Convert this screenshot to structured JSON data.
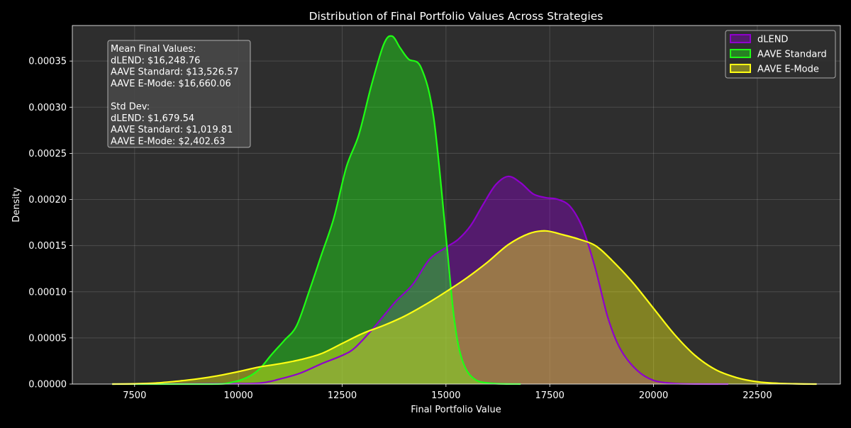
{
  "chart_data": {
    "type": "area",
    "title": "Distribution of Final Portfolio Values Across Strategies",
    "xlabel": "Final Portfolio Value",
    "ylabel": "Density",
    "xlim": [
      6000,
      24500
    ],
    "ylim": [
      0,
      0.0003885
    ],
    "xticks": [
      7500,
      10000,
      12500,
      15000,
      17500,
      20000,
      22500
    ],
    "yticks": [
      0,
      5e-05,
      0.0001,
      0.00015,
      0.0002,
      0.00025,
      0.0003,
      0.00035
    ],
    "ytick_labels": [
      "0.00000",
      "0.00005",
      "0.00010",
      "0.00015",
      "0.00020",
      "0.00025",
      "0.00030",
      "0.00035"
    ],
    "grid": true,
    "background": "#2e2e2e",
    "legend_position": "top-right",
    "series": [
      {
        "name": "dLEND",
        "color": "#8e00cc",
        "points": [
          [
            6960,
            0
          ],
          [
            9500,
            5e-07
          ],
          [
            10500,
            1e-06
          ],
          [
            11000,
            5.5e-06
          ],
          [
            11500,
            1.2e-05
          ],
          [
            12000,
            2.2e-05
          ],
          [
            12500,
            3.1e-05
          ],
          [
            12800,
            3.9e-05
          ],
          [
            13200,
            5.8e-05
          ],
          [
            13500,
            7.4e-05
          ],
          [
            13800,
            9e-05
          ],
          [
            14200,
            0.000108
          ],
          [
            14600,
            0.000135
          ],
          [
            15000,
            0.000148
          ],
          [
            15300,
            0.000157
          ],
          [
            15600,
            0.000172
          ],
          [
            15900,
            0.000195
          ],
          [
            16200,
            0.000216
          ],
          [
            16500,
            0.000225
          ],
          [
            16800,
            0.000218
          ],
          [
            17100,
            0.000206
          ],
          [
            17400,
            0.000202
          ],
          [
            17700,
            0.0002
          ],
          [
            18000,
            0.000192
          ],
          [
            18300,
            0.000168
          ],
          [
            18600,
            0.000125
          ],
          [
            18900,
            7.2e-05
          ],
          [
            19200,
            3.8e-05
          ],
          [
            19600,
            1.5e-05
          ],
          [
            20000,
            4e-06
          ],
          [
            20500,
            7e-07
          ],
          [
            21000,
            1e-07
          ],
          [
            21800,
            0
          ]
        ]
      },
      {
        "name": "AAVE Standard",
        "color": "#1fff14",
        "points": [
          [
            6960,
            0
          ],
          [
            9300,
            0
          ],
          [
            9800,
            1.5e-06
          ],
          [
            10200,
            7e-06
          ],
          [
            10500,
            1.6e-05
          ],
          [
            10800,
            3.2e-05
          ],
          [
            11100,
            4.7e-05
          ],
          [
            11400,
            6.3e-05
          ],
          [
            11700,
            0.0001
          ],
          [
            12000,
            0.00014
          ],
          [
            12300,
            0.00018
          ],
          [
            12600,
            0.000235
          ],
          [
            12900,
            0.00027
          ],
          [
            13200,
            0.000323
          ],
          [
            13500,
            0.000368
          ],
          [
            13700,
            0.000377
          ],
          [
            13900,
            0.000364
          ],
          [
            14100,
            0.000352
          ],
          [
            14400,
            0.000343
          ],
          [
            14700,
            0.00029
          ],
          [
            15000,
            0.00016
          ],
          [
            15200,
            7e-05
          ],
          [
            15400,
            2.5e-05
          ],
          [
            15700,
            5e-06
          ],
          [
            16200,
            5e-07
          ],
          [
            16800,
            0
          ]
        ]
      },
      {
        "name": "AAVE E-Mode",
        "color": "#ffff14",
        "points": [
          [
            6960,
            0
          ],
          [
            7500,
            3e-07
          ],
          [
            8000,
            1.1e-06
          ],
          [
            8500,
            3e-06
          ],
          [
            9000,
            5.5e-06
          ],
          [
            9500,
            9e-06
          ],
          [
            10000,
            1.35e-05
          ],
          [
            10500,
            1.85e-05
          ],
          [
            11000,
            2.2e-05
          ],
          [
            11500,
            2.65e-05
          ],
          [
            12000,
            3.3e-05
          ],
          [
            12500,
            4.4e-05
          ],
          [
            13000,
            5.5e-05
          ],
          [
            13500,
            6.35e-05
          ],
          [
            14000,
            7.35e-05
          ],
          [
            14500,
            8.6e-05
          ],
          [
            15000,
            0.0001
          ],
          [
            15500,
            0.000115
          ],
          [
            16000,
            0.000132
          ],
          [
            16500,
            0.000151
          ],
          [
            17000,
            0.000163
          ],
          [
            17400,
            0.000166
          ],
          [
            17800,
            0.000162
          ],
          [
            18200,
            0.000157
          ],
          [
            18600,
            0.00015
          ],
          [
            19000,
            0.000134
          ],
          [
            19500,
            0.00011
          ],
          [
            20000,
            8.2e-05
          ],
          [
            20500,
            5.4e-05
          ],
          [
            21000,
            3.1e-05
          ],
          [
            21500,
            1.55e-05
          ],
          [
            22000,
            7e-06
          ],
          [
            22500,
            2.5e-06
          ],
          [
            23000,
            8e-07
          ],
          [
            23500,
            2e-07
          ],
          [
            23930,
            0
          ]
        ]
      }
    ]
  },
  "stats_box": {
    "lines": [
      "Mean Final Values:",
      "dLEND: $16,248.76",
      "AAVE Standard: $13,526.57",
      "AAVE E-Mode: $16,660.06",
      "",
      "Std Dev:",
      "dLEND: $1,679.54",
      "AAVE Standard: $1,019.81",
      "AAVE E-Mode: $2,402.63"
    ]
  }
}
